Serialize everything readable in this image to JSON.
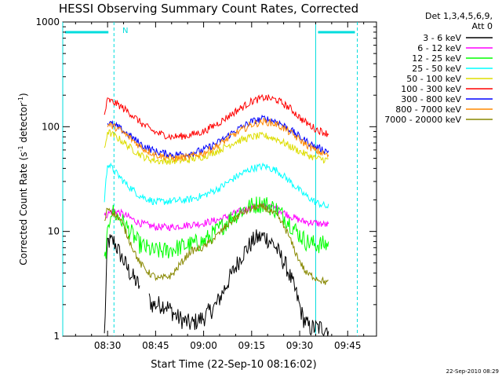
{
  "chart_data": {
    "type": "line",
    "title": "HESSI Observing Summary Count Rates, Corrected",
    "xlabel": "Start Time (22-Sep-10 08:16:02)",
    "ylabel_main": "Corrected Count Rate (s",
    "ylabel_sup1": "-1",
    "ylabel_mid": " detector",
    "ylabel_sup2": "-1",
    "ylabel_end": ")",
    "yscale": "log",
    "ylim": [
      1,
      1000
    ],
    "xlim_minutes": [
      496,
      594
    ],
    "x_ticks": [
      {
        "minute": 510,
        "label": "08:30"
      },
      {
        "minute": 525,
        "label": "08:45"
      },
      {
        "minute": 540,
        "label": "09:00"
      },
      {
        "minute": 555,
        "label": "09:15"
      },
      {
        "minute": 570,
        "label": "09:30"
      },
      {
        "minute": 585,
        "label": "09:45"
      }
    ],
    "y_ticks": [
      {
        "value": 1,
        "label": "1"
      },
      {
        "value": 10,
        "label": "10"
      },
      {
        "value": 100,
        "label": "100"
      },
      {
        "value": 1000,
        "label": "1000"
      }
    ],
    "data_start_minute": 509,
    "data_end_minute": 579,
    "legend_header_line1": "Det 1,3,4,5,6,9,",
    "legend_header_line2": "Att 0",
    "legend_placement": "right",
    "footer_timestamp": "22-Sep-2010 08:29",
    "series": [
      {
        "name": "3 - 6 keV",
        "color": "#000000",
        "gap_start": 520,
        "gap_end": 523,
        "points": [
          [
            509,
            1
          ],
          [
            510,
            8
          ],
          [
            512,
            8
          ],
          [
            514,
            6
          ],
          [
            517,
            4
          ],
          [
            520,
            3
          ],
          [
            524,
            2
          ],
          [
            528,
            2
          ],
          [
            532,
            1.5
          ],
          [
            536,
            1.3
          ],
          [
            540,
            1.5
          ],
          [
            544,
            2
          ],
          [
            548,
            3.5
          ],
          [
            552,
            6
          ],
          [
            556,
            8.5
          ],
          [
            559,
            9
          ],
          [
            562,
            7.5
          ],
          [
            566,
            4.5
          ],
          [
            569,
            2.5
          ],
          [
            571,
            1.5
          ],
          [
            573,
            1.2
          ],
          [
            576,
            1.2
          ],
          [
            579,
            1.2
          ]
        ]
      },
      {
        "name": "6 - 12 keV",
        "color": "#ff00ff",
        "points": [
          [
            509,
            14
          ],
          [
            512,
            16
          ],
          [
            516,
            14
          ],
          [
            520,
            12
          ],
          [
            525,
            11
          ],
          [
            530,
            11
          ],
          [
            535,
            11.5
          ],
          [
            540,
            12
          ],
          [
            545,
            13
          ],
          [
            550,
            15
          ],
          [
            555,
            17
          ],
          [
            559,
            17.5
          ],
          [
            563,
            16.5
          ],
          [
            567,
            14
          ],
          [
            571,
            12.5
          ],
          [
            575,
            12
          ],
          [
            579,
            11.5
          ]
        ]
      },
      {
        "name": "12 - 25 keV",
        "color": "#00ff00",
        "points": [
          [
            509,
            5
          ],
          [
            511,
            16
          ],
          [
            514,
            13
          ],
          [
            517,
            10
          ],
          [
            520,
            7.5
          ],
          [
            524,
            6.5
          ],
          [
            528,
            6.5
          ],
          [
            532,
            7
          ],
          [
            536,
            7.5
          ],
          [
            540,
            8
          ],
          [
            544,
            10
          ],
          [
            548,
            13
          ],
          [
            552,
            16
          ],
          [
            556,
            18
          ],
          [
            559,
            18.5
          ],
          [
            563,
            16
          ],
          [
            566,
            13
          ],
          [
            569,
            10
          ],
          [
            572,
            8
          ],
          [
            575,
            7.5
          ],
          [
            579,
            7.5
          ]
        ]
      },
      {
        "name": "25 - 50 keV",
        "color": "#00ffff",
        "points": [
          [
            509,
            20
          ],
          [
            510,
            45
          ],
          [
            512,
            38
          ],
          [
            516,
            28
          ],
          [
            520,
            22
          ],
          [
            525,
            19
          ],
          [
            530,
            19.5
          ],
          [
            535,
            20
          ],
          [
            540,
            22
          ],
          [
            545,
            26
          ],
          [
            550,
            33
          ],
          [
            555,
            40
          ],
          [
            559,
            42
          ],
          [
            563,
            38
          ],
          [
            567,
            30
          ],
          [
            571,
            23
          ],
          [
            575,
            19
          ],
          [
            579,
            17
          ]
        ]
      },
      {
        "name": "50 - 100 keV",
        "color": "#dddd00",
        "points": [
          [
            509,
            60
          ],
          [
            510,
            90
          ],
          [
            514,
            75
          ],
          [
            518,
            60
          ],
          [
            522,
            50
          ],
          [
            526,
            47
          ],
          [
            530,
            47
          ],
          [
            535,
            48
          ],
          [
            540,
            52
          ],
          [
            545,
            60
          ],
          [
            550,
            72
          ],
          [
            555,
            80
          ],
          [
            559,
            82
          ],
          [
            563,
            76
          ],
          [
            567,
            65
          ],
          [
            571,
            56
          ],
          [
            575,
            50
          ],
          [
            579,
            48
          ]
        ]
      },
      {
        "name": "100 - 300 keV",
        "color": "#ff0000",
        "points": [
          [
            509,
            130
          ],
          [
            510,
            180
          ],
          [
            513,
            165
          ],
          [
            517,
            135
          ],
          [
            521,
            105
          ],
          [
            525,
            88
          ],
          [
            530,
            80
          ],
          [
            535,
            82
          ],
          [
            540,
            90
          ],
          [
            545,
            110
          ],
          [
            550,
            140
          ],
          [
            555,
            175
          ],
          [
            559,
            190
          ],
          [
            563,
            180
          ],
          [
            567,
            150
          ],
          [
            571,
            115
          ],
          [
            575,
            95
          ],
          [
            579,
            85
          ]
        ]
      },
      {
        "name": "300 - 800 keV",
        "color": "#0000ff",
        "points": [
          [
            510,
            110
          ],
          [
            513,
            100
          ],
          [
            517,
            82
          ],
          [
            521,
            66
          ],
          [
            525,
            58
          ],
          [
            530,
            54
          ],
          [
            535,
            55
          ],
          [
            540,
            60
          ],
          [
            545,
            72
          ],
          [
            550,
            92
          ],
          [
            555,
            112
          ],
          [
            559,
            120
          ],
          [
            563,
            112
          ],
          [
            567,
            94
          ],
          [
            571,
            76
          ],
          [
            575,
            64
          ],
          [
            579,
            58
          ]
        ]
      },
      {
        "name": "800 - 7000 keV",
        "color": "#ff8800",
        "points": [
          [
            510,
            105
          ],
          [
            513,
            97
          ],
          [
            517,
            78
          ],
          [
            521,
            62
          ],
          [
            525,
            54
          ],
          [
            530,
            50
          ],
          [
            535,
            51
          ],
          [
            540,
            56
          ],
          [
            545,
            68
          ],
          [
            550,
            86
          ],
          [
            555,
            105
          ],
          [
            559,
            112
          ],
          [
            563,
            105
          ],
          [
            567,
            88
          ],
          [
            571,
            71
          ],
          [
            575,
            59
          ],
          [
            579,
            53
          ]
        ]
      },
      {
        "name": "7000 - 20000 keV",
        "color": "#888800",
        "points": [
          [
            509,
            12
          ],
          [
            510,
            17
          ],
          [
            514,
            13
          ],
          [
            517,
            8
          ],
          [
            520,
            5
          ],
          [
            523,
            4
          ],
          [
            526,
            3.5
          ],
          [
            530,
            3.8
          ],
          [
            533,
            5
          ],
          [
            536,
            6.5
          ],
          [
            540,
            7
          ],
          [
            544,
            9
          ],
          [
            548,
            12
          ],
          [
            552,
            15
          ],
          [
            556,
            17
          ],
          [
            559,
            17
          ],
          [
            563,
            14
          ],
          [
            566,
            10
          ],
          [
            569,
            6
          ],
          [
            572,
            4
          ],
          [
            576,
            3.5
          ],
          [
            579,
            3.2
          ]
        ]
      }
    ],
    "annotations": {
      "saa_top_bar_color": "#00dddd",
      "night_marker_label": "N",
      "cyan_solid_lines_minutes": [
        496,
        575
      ],
      "cyan_dashed_lines_minutes": [
        512,
        588
      ],
      "top_bars_minutes": [
        [
          496,
          511
        ],
        [
          575,
          588
        ]
      ]
    }
  }
}
